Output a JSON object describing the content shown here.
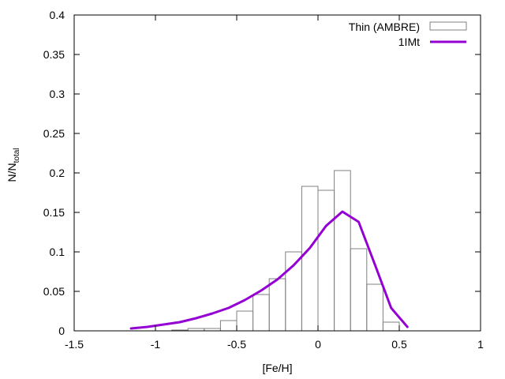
{
  "chart_data": {
    "type": "bar",
    "xlabel": "[Fe/H]",
    "ylabel": "N/N",
    "ylabel_sub": "total",
    "xlim": [
      -1.5,
      1
    ],
    "ylim": [
      0,
      0.4
    ],
    "xticks": [
      -1.5,
      -1,
      -0.5,
      0,
      0.5,
      1
    ],
    "xtick_labels": [
      "-1.5",
      "-1",
      "-0.5",
      "0",
      "0.5",
      "1"
    ],
    "yticks": [
      0,
      0.05,
      0.1,
      0.15,
      0.2,
      0.25,
      0.3,
      0.35,
      0.4
    ],
    "ytick_labels": [
      "0",
      "0.05",
      "0.1",
      "0.15",
      "0.2",
      "0.25",
      "0.3",
      "0.35",
      "0.4"
    ],
    "grid": false,
    "legend_position": "top-right",
    "histogram": {
      "name": "Thin (AMBRE)",
      "bin_width": 0.1,
      "color": "#808080",
      "bins": [
        {
          "center": -0.85,
          "value": 0.001
        },
        {
          "center": -0.75,
          "value": 0.003
        },
        {
          "center": -0.65,
          "value": 0.003
        },
        {
          "center": -0.55,
          "value": 0.013
        },
        {
          "center": -0.45,
          "value": 0.025
        },
        {
          "center": -0.35,
          "value": 0.046
        },
        {
          "center": -0.25,
          "value": 0.066
        },
        {
          "center": -0.15,
          "value": 0.1
        },
        {
          "center": -0.05,
          "value": 0.183
        },
        {
          "center": 0.05,
          "value": 0.178
        },
        {
          "center": 0.15,
          "value": 0.203
        },
        {
          "center": 0.25,
          "value": 0.104
        },
        {
          "center": 0.35,
          "value": 0.059
        },
        {
          "center": 0.45,
          "value": 0.011
        }
      ]
    },
    "line": {
      "name": "1IMt",
      "color": "#9400d3",
      "x": [
        -1.15,
        -1.05,
        -0.95,
        -0.85,
        -0.75,
        -0.65,
        -0.55,
        -0.45,
        -0.35,
        -0.25,
        -0.15,
        -0.05,
        0.05,
        0.15,
        0.25,
        0.35,
        0.45,
        0.55
      ],
      "y": [
        0.003,
        0.005,
        0.008,
        0.011,
        0.016,
        0.022,
        0.029,
        0.039,
        0.051,
        0.065,
        0.083,
        0.105,
        0.133,
        0.151,
        0.138,
        0.084,
        0.029,
        0.005
      ]
    }
  }
}
